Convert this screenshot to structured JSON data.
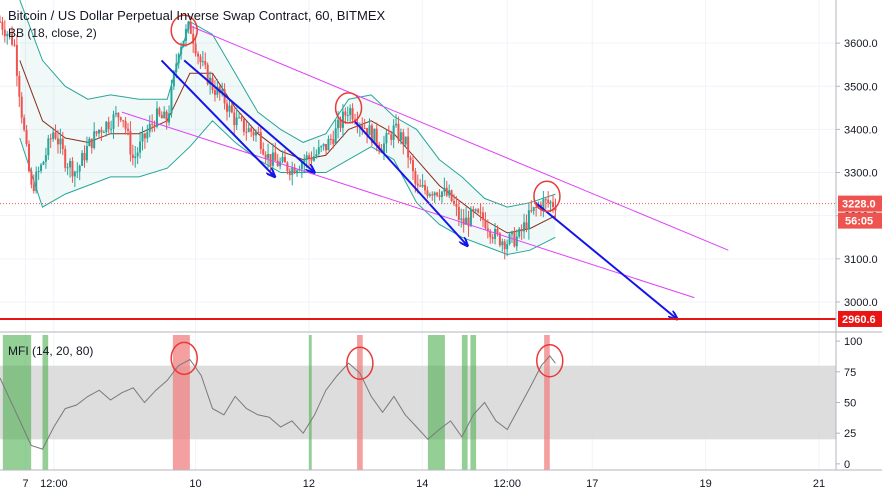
{
  "chart_title": "Bitcoin / US Dollar Perpetual Inverse Swap Contract, 60, BITMEX",
  "colors": {
    "up": "#26a69a",
    "down": "#ef5350",
    "bb_band": "#26a69a",
    "bb_basis": "#8b2c1e",
    "channel": "#e040fb",
    "arrow": "#1515e8",
    "support": "#e81515",
    "circle": "#e83a3a",
    "mfi_line": "#7a7a7a",
    "mfi_band": "#d7d7d7",
    "green_highlight": "#4caf50",
    "red_highlight": "#f08080"
  },
  "chart_data": [
    {
      "type": "candlestick",
      "title": "Bitcoin / US Dollar Perpetual Inverse Swap Contract, 60, BITMEX",
      "indicator_label": "BB (18, close, 2)",
      "ylim": [
        2935,
        3700
      ],
      "y_ticks": [
        3000.0,
        3100.0,
        3200.0,
        3300.0,
        3400.0,
        3500.0,
        3600.0
      ],
      "y_tick_labels": [
        "3000.0",
        "3100.0",
        "3200.0",
        "3300.0",
        "3400.0",
        "3500.0",
        "3600.0"
      ],
      "x_ticks": [
        "7",
        "12:00",
        "10",
        "12",
        "14",
        "12:00",
        "17",
        "19",
        "21"
      ],
      "x_tick_days": [
        7,
        7.5,
        10,
        12,
        14,
        15.5,
        17,
        19,
        21
      ],
      "x_range": [
        6.55,
        21.3
      ],
      "last_price": 3228.0,
      "last_price_label": "3228.0",
      "countdown": "56:05",
      "support_level": 2960.6,
      "support_label": "2960.6",
      "price_path": [
        [
          6.55,
          3650
        ],
        [
          6.8,
          3600
        ],
        [
          6.95,
          3420
        ],
        [
          7.1,
          3260
        ],
        [
          7.3,
          3320
        ],
        [
          7.5,
          3400
        ],
        [
          7.7,
          3330
        ],
        [
          7.9,
          3300
        ],
        [
          8.1,
          3360
        ],
        [
          8.3,
          3400
        ],
        [
          8.5,
          3420
        ],
        [
          8.7,
          3440
        ],
        [
          8.9,
          3330
        ],
        [
          9.1,
          3380
        ],
        [
          9.3,
          3430
        ],
        [
          9.5,
          3420
        ],
        [
          9.7,
          3590
        ],
        [
          9.9,
          3640
        ],
        [
          10.1,
          3550
        ],
        [
          10.3,
          3500
        ],
        [
          10.5,
          3470
        ],
        [
          10.7,
          3420
        ],
        [
          10.9,
          3400
        ],
        [
          11.1,
          3390
        ],
        [
          11.3,
          3330
        ],
        [
          11.5,
          3320
        ],
        [
          11.7,
          3310
        ],
        [
          11.9,
          3330
        ],
        [
          12.1,
          3340
        ],
        [
          12.3,
          3360
        ],
        [
          12.5,
          3400
        ],
        [
          12.7,
          3450
        ],
        [
          12.9,
          3420
        ],
        [
          13.1,
          3390
        ],
        [
          13.3,
          3360
        ],
        [
          13.5,
          3400
        ],
        [
          13.7,
          3370
        ],
        [
          13.9,
          3260
        ],
        [
          14.1,
          3260
        ],
        [
          14.3,
          3260
        ],
        [
          14.5,
          3240
        ],
        [
          14.7,
          3180
        ],
        [
          14.9,
          3200
        ],
        [
          15.1,
          3190
        ],
        [
          15.3,
          3150
        ],
        [
          15.5,
          3140
        ],
        [
          15.7,
          3150
        ],
        [
          15.9,
          3200
        ],
        [
          16.1,
          3230
        ],
        [
          16.35,
          3228
        ]
      ],
      "bb_upper": [
        [
          6.9,
          3700
        ],
        [
          7.3,
          3560
        ],
        [
          7.7,
          3500
        ],
        [
          8.1,
          3470
        ],
        [
          8.5,
          3480
        ],
        [
          9.0,
          3470
        ],
        [
          9.5,
          3470
        ],
        [
          9.9,
          3650
        ],
        [
          10.3,
          3620
        ],
        [
          10.7,
          3530
        ],
        [
          11.1,
          3440
        ],
        [
          11.5,
          3400
        ],
        [
          11.9,
          3370
        ],
        [
          12.3,
          3390
        ],
        [
          12.7,
          3470
        ],
        [
          13.1,
          3480
        ],
        [
          13.5,
          3430
        ],
        [
          13.9,
          3400
        ],
        [
          14.3,
          3330
        ],
        [
          14.7,
          3290
        ],
        [
          15.1,
          3240
        ],
        [
          15.5,
          3220
        ],
        [
          15.9,
          3230
        ],
        [
          16.35,
          3250
        ]
      ],
      "bb_basis": [
        [
          6.9,
          3560
        ],
        [
          7.3,
          3420
        ],
        [
          7.7,
          3380
        ],
        [
          8.1,
          3370
        ],
        [
          8.5,
          3390
        ],
        [
          9.0,
          3390
        ],
        [
          9.5,
          3420
        ],
        [
          9.9,
          3530
        ],
        [
          10.3,
          3530
        ],
        [
          10.7,
          3450
        ],
        [
          11.1,
          3390
        ],
        [
          11.5,
          3350
        ],
        [
          11.9,
          3330
        ],
        [
          12.3,
          3340
        ],
        [
          12.7,
          3400
        ],
        [
          13.1,
          3420
        ],
        [
          13.5,
          3390
        ],
        [
          13.9,
          3330
        ],
        [
          14.3,
          3270
        ],
        [
          14.7,
          3230
        ],
        [
          15.1,
          3190
        ],
        [
          15.5,
          3160
        ],
        [
          15.9,
          3170
        ],
        [
          16.35,
          3200
        ]
      ],
      "bb_lower": [
        [
          6.9,
          3380
        ],
        [
          7.3,
          3220
        ],
        [
          7.7,
          3250
        ],
        [
          8.1,
          3270
        ],
        [
          8.5,
          3290
        ],
        [
          9.0,
          3290
        ],
        [
          9.5,
          3310
        ],
        [
          9.9,
          3360
        ],
        [
          10.3,
          3420
        ],
        [
          10.7,
          3370
        ],
        [
          11.1,
          3330
        ],
        [
          11.5,
          3300
        ],
        [
          11.9,
          3300
        ],
        [
          12.3,
          3300
        ],
        [
          12.7,
          3330
        ],
        [
          13.1,
          3360
        ],
        [
          13.5,
          3330
        ],
        [
          13.9,
          3230
        ],
        [
          14.3,
          3180
        ],
        [
          14.7,
          3150
        ],
        [
          15.1,
          3130
        ],
        [
          15.5,
          3110
        ],
        [
          15.9,
          3120
        ],
        [
          16.35,
          3150
        ]
      ],
      "channel_lines": [
        {
          "from": [
            9.9,
            3640
          ],
          "to": [
            19.4,
            3120
          ]
        },
        {
          "from": [
            8.7,
            3440
          ],
          "to": [
            18.8,
            3010
          ]
        }
      ],
      "trend_arrows": [
        {
          "from": [
            9.4,
            3560
          ],
          "to": [
            11.4,
            3290
          ]
        },
        {
          "from": [
            12.8,
            3420
          ],
          "to": [
            14.8,
            3130
          ]
        },
        {
          "from": [
            16.0,
            3230
          ],
          "to": [
            18.5,
            2960
          ]
        },
        {
          "from": [
            9.8,
            3560
          ],
          "to": [
            12.1,
            3300
          ]
        }
      ],
      "highlight_circles": [
        {
          "day": 9.8,
          "price": 3630
        },
        {
          "day": 12.7,
          "price": 3450
        },
        {
          "day": 16.2,
          "price": 3245
        }
      ]
    },
    {
      "type": "line",
      "indicator_label": "MFI (14, 20, 80)",
      "ylim": [
        -5,
        105
      ],
      "y_ticks": [
        0,
        25,
        50,
        75,
        100
      ],
      "y_tick_labels": [
        "0",
        "25",
        "50",
        "75",
        "100"
      ],
      "band": [
        20,
        80
      ],
      "mfi_path": [
        [
          6.55,
          70
        ],
        [
          6.8,
          45
        ],
        [
          6.95,
          30
        ],
        [
          7.1,
          15
        ],
        [
          7.3,
          12
        ],
        [
          7.5,
          30
        ],
        [
          7.7,
          45
        ],
        [
          7.9,
          48
        ],
        [
          8.1,
          55
        ],
        [
          8.3,
          60
        ],
        [
          8.5,
          52
        ],
        [
          8.7,
          58
        ],
        [
          8.9,
          62
        ],
        [
          9.1,
          50
        ],
        [
          9.3,
          60
        ],
        [
          9.5,
          68
        ],
        [
          9.7,
          80
        ],
        [
          9.9,
          85
        ],
        [
          10.1,
          72
        ],
        [
          10.3,
          45
        ],
        [
          10.5,
          40
        ],
        [
          10.7,
          55
        ],
        [
          10.9,
          45
        ],
        [
          11.1,
          40
        ],
        [
          11.3,
          38
        ],
        [
          11.5,
          30
        ],
        [
          11.7,
          35
        ],
        [
          11.9,
          25
        ],
        [
          12.1,
          40
        ],
        [
          12.3,
          60
        ],
        [
          12.5,
          72
        ],
        [
          12.7,
          82
        ],
        [
          12.9,
          74
        ],
        [
          13.1,
          55
        ],
        [
          13.3,
          42
        ],
        [
          13.5,
          55
        ],
        [
          13.7,
          40
        ],
        [
          13.9,
          30
        ],
        [
          14.1,
          20
        ],
        [
          14.3,
          28
        ],
        [
          14.5,
          35
        ],
        [
          14.7,
          22
        ],
        [
          14.9,
          40
        ],
        [
          15.1,
          50
        ],
        [
          15.3,
          35
        ],
        [
          15.5,
          28
        ],
        [
          15.7,
          45
        ],
        [
          15.9,
          62
        ],
        [
          16.1,
          80
        ],
        [
          16.25,
          88
        ],
        [
          16.35,
          82
        ]
      ],
      "green_zones": [
        [
          6.6,
          7.1
        ],
        [
          7.3,
          7.4
        ],
        [
          12.0,
          12.05
        ],
        [
          14.1,
          14.4
        ],
        [
          14.7,
          14.8
        ],
        [
          14.85,
          14.95
        ]
      ],
      "red_zones": [
        [
          9.6,
          9.9
        ],
        [
          12.85,
          12.95
        ],
        [
          16.15,
          16.25
        ]
      ],
      "highlight_circles": [
        {
          "day": 9.8,
          "value": 86
        },
        {
          "day": 12.9,
          "value": 82
        },
        {
          "day": 16.25,
          "value": 84
        }
      ]
    }
  ]
}
